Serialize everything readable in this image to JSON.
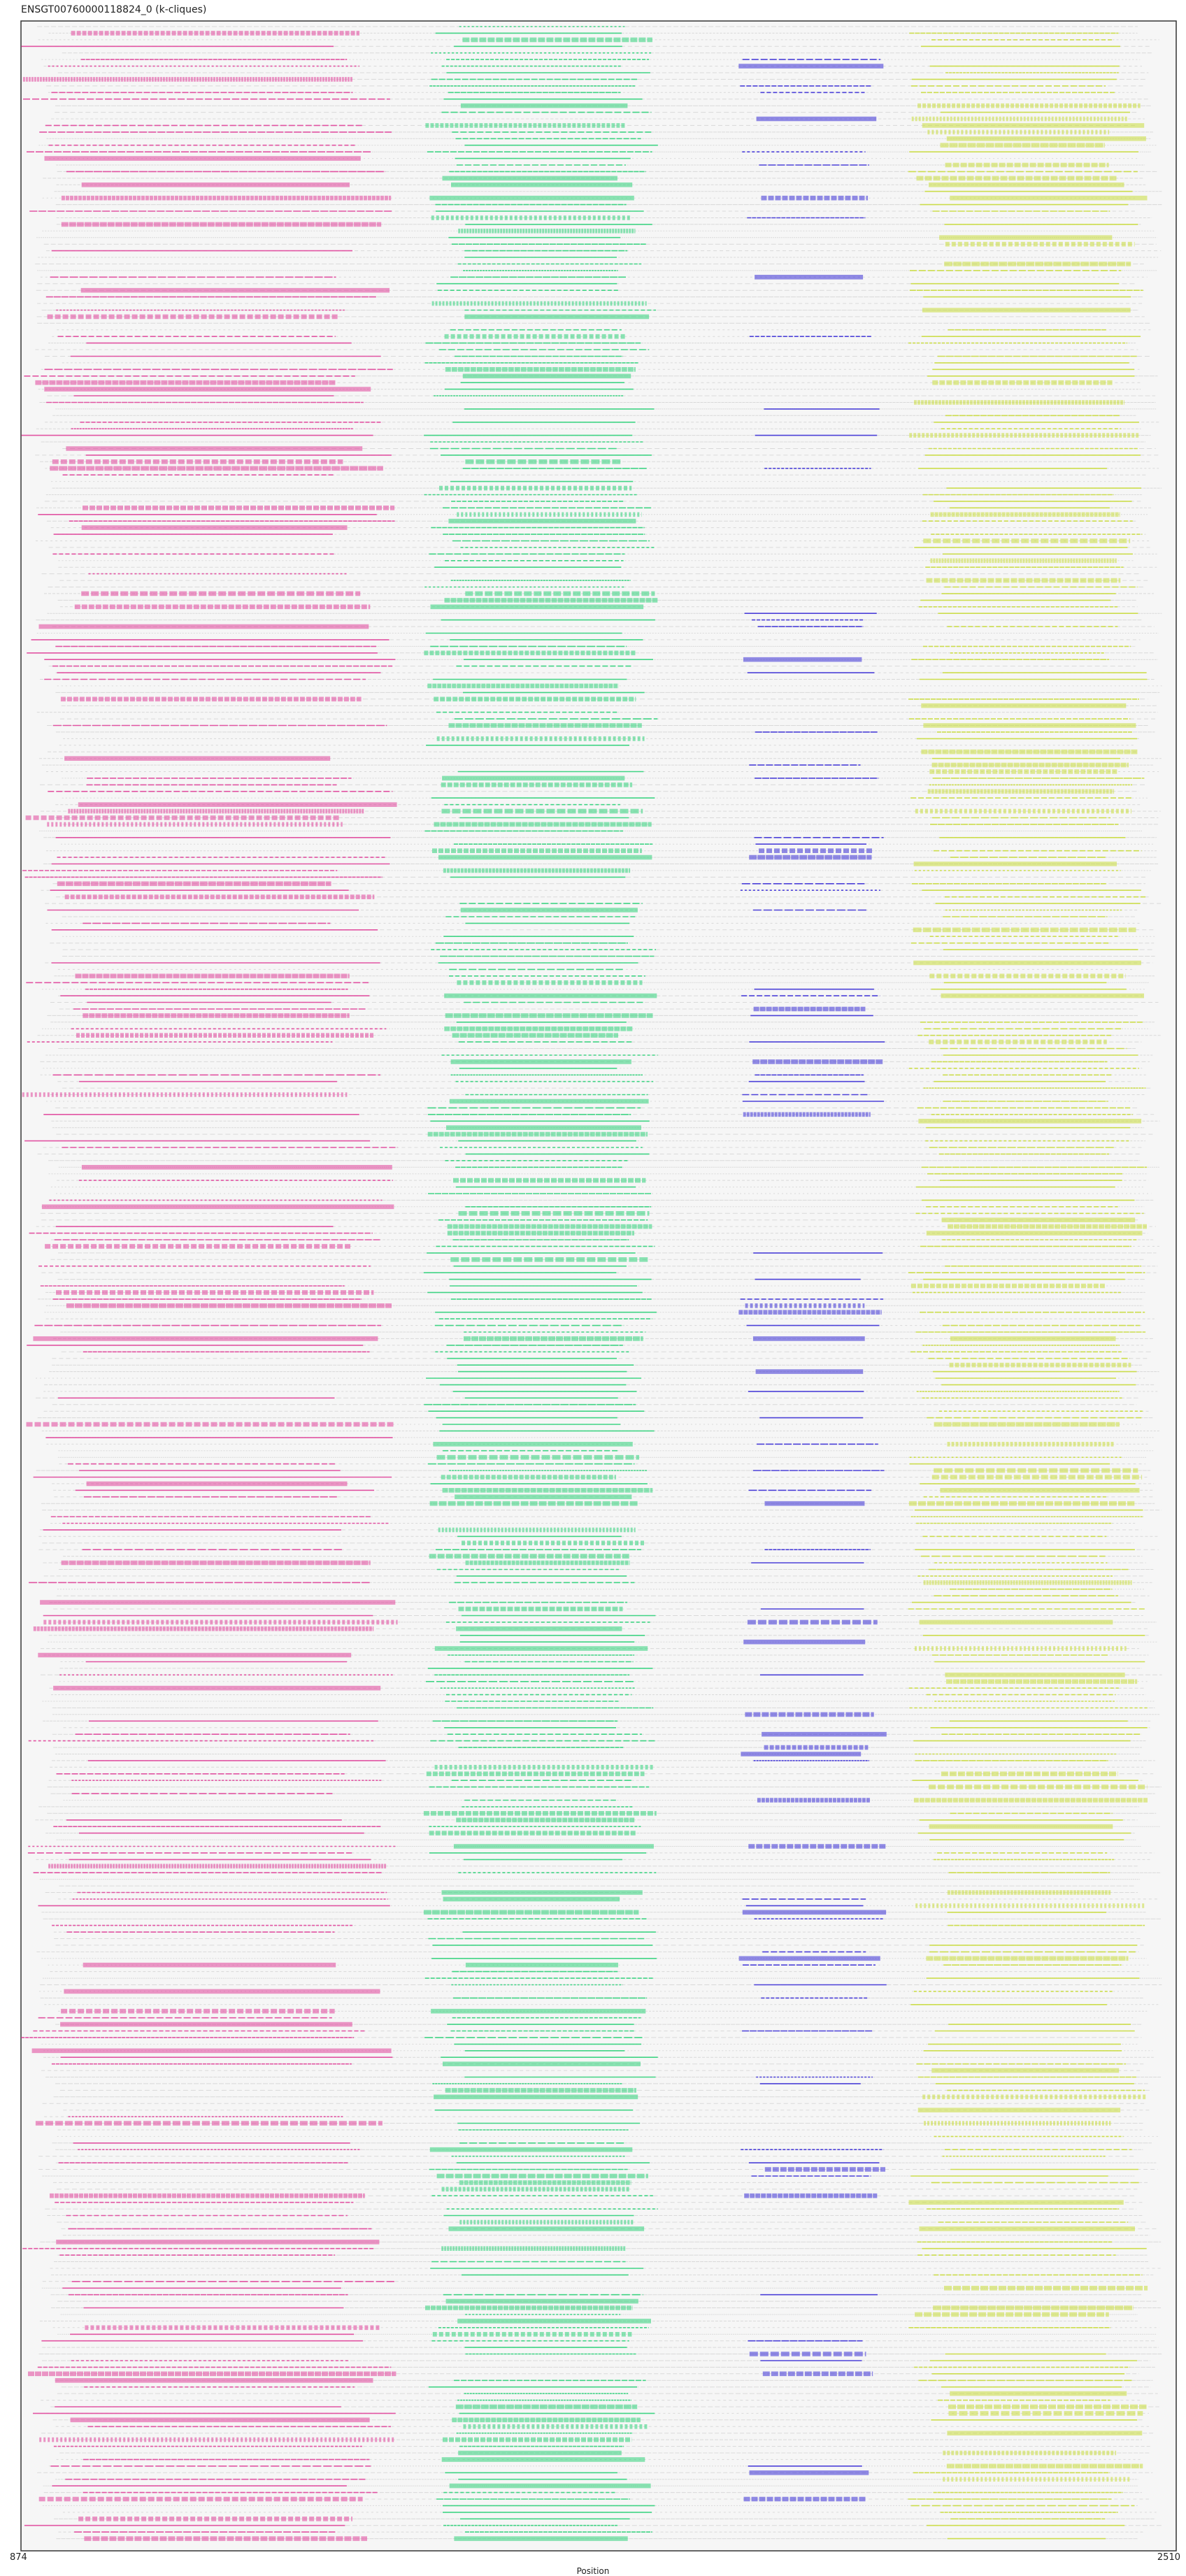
{
  "chart_data": {
    "type": "alignment-track",
    "title": "ENSGT00760000118824_0 (k-cliques)",
    "xlabel": "Position",
    "ylabel": "",
    "xlim": [
      874,
      2510
    ],
    "x_ticks": [
      "874",
      "2510"
    ],
    "row_count": 382,
    "grid": false,
    "legend": "none",
    "background_segment_color": "#d9d9d9",
    "panel_background": "#f6f6f6",
    "series": [
      {
        "color": "#e0449a",
        "start": 874,
        "end": 1408
      },
      {
        "color": "#2fd27a",
        "start": 1444,
        "end": 1776
      },
      {
        "color": "#3b2fd6",
        "start": 1890,
        "end": 2100
      },
      {
        "color": "#c9dc3c",
        "start": 2130,
        "end": 2470
      }
    ]
  }
}
